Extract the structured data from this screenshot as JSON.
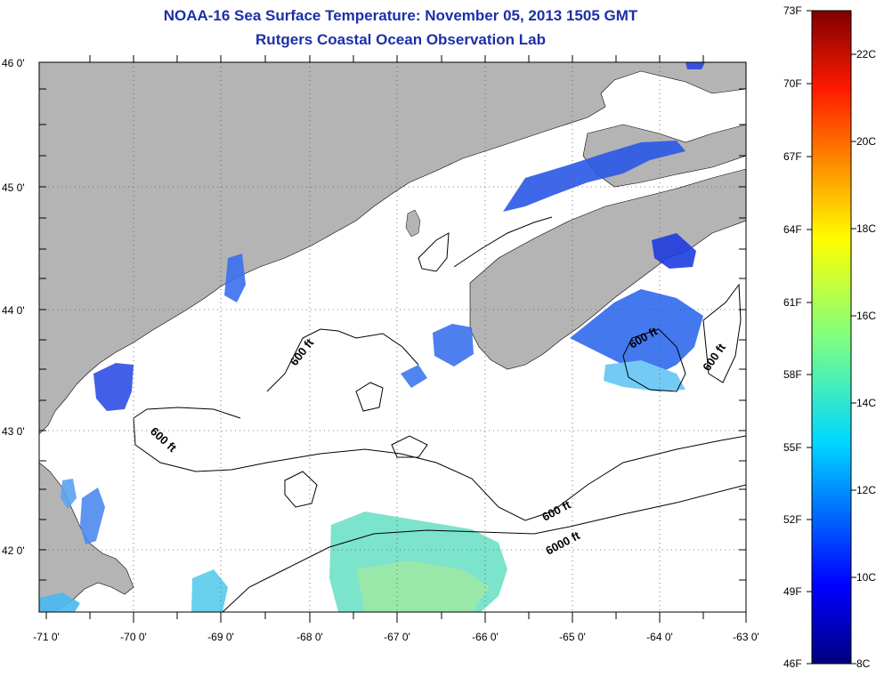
{
  "title": {
    "line1": "NOAA-16 Sea Surface Temperature:  November 05, 2013 1505 GMT",
    "line2": "Rutgers Coastal Ocean Observation Lab"
  },
  "map": {
    "lat_labels": [
      "46 0'",
      "45 0'",
      "44 0'",
      "43 0'",
      "42 0'"
    ],
    "lon_labels": [
      "-71 0'",
      "-70 0'",
      "-69 0'",
      "-68 0'",
      "-67 0'",
      "-66 0'",
      "-65 0'",
      "-64 0'",
      "-63 0'"
    ],
    "contour_labels": [
      "600 ft",
      "600 ft",
      "600 ft",
      "600 ft",
      "600 ft",
      "6000 ft"
    ],
    "land_color": "#b4b4b4",
    "ocean_color": "#ffffff"
  },
  "colorbar": {
    "fahrenheit": [
      "73F",
      "70F",
      "67F",
      "64F",
      "61F",
      "58F",
      "55F",
      "52F",
      "49F",
      "46F"
    ],
    "celsius": [
      "22C",
      "20C",
      "18C",
      "16C",
      "14C",
      "12C",
      "10C",
      "8C"
    ],
    "colormap": "jet"
  }
}
